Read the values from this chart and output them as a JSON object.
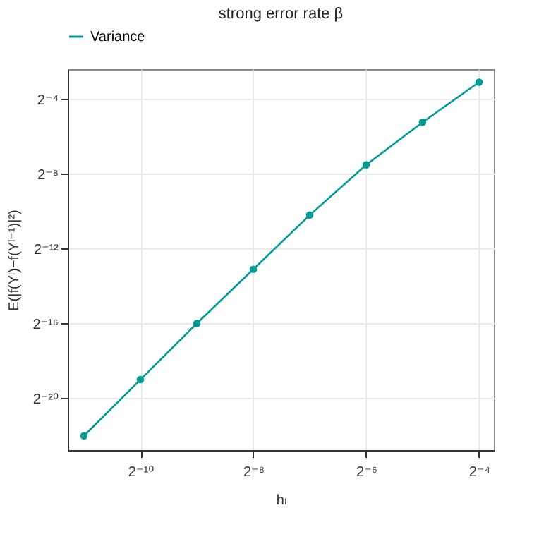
{
  "chart_data": {
    "type": "line",
    "title": "strong error rate β",
    "xlabel": "hₗ",
    "ylabel": "E(|f(Yˡ)−f(Yˡ⁻¹)|²)",
    "x": [
      0.00048828125,
      0.0009765625,
      0.001953125,
      0.00390625,
      0.0078125,
      0.015625,
      0.03125,
      0.0625
    ],
    "series": [
      {
        "name": "Variance",
        "color": "#009b95",
        "values": [
          2.38e-07,
          1.91e-06,
          1.53e-05,
          0.000114,
          0.00085,
          0.00545,
          0.0266,
          0.117
        ]
      }
    ],
    "log": "xy",
    "xlim": [
      0.0004,
      0.075
    ],
    "ylim": [
      1.4e-07,
      0.19
    ],
    "xticks": [
      {
        "value": 0.0009765625,
        "label": "2⁻¹⁰"
      },
      {
        "value": 0.00390625,
        "label": "2⁻⁸"
      },
      {
        "value": 0.015625,
        "label": "2⁻⁶"
      },
      {
        "value": 0.0625,
        "label": "2⁻⁴"
      }
    ],
    "yticks": [
      {
        "value": 9.5367431640625e-07,
        "label": "2⁻²⁰"
      },
      {
        "value": 1.52587890625e-05,
        "label": "2⁻¹⁶"
      },
      {
        "value": 0.000244140625,
        "label": "2⁻¹²"
      },
      {
        "value": 0.00390625,
        "label": "2⁻⁸"
      },
      {
        "value": 0.0625,
        "label": "2⁻⁴"
      }
    ],
    "grid": true,
    "legend": "top",
    "marker": "circle",
    "line_style": "solid"
  }
}
